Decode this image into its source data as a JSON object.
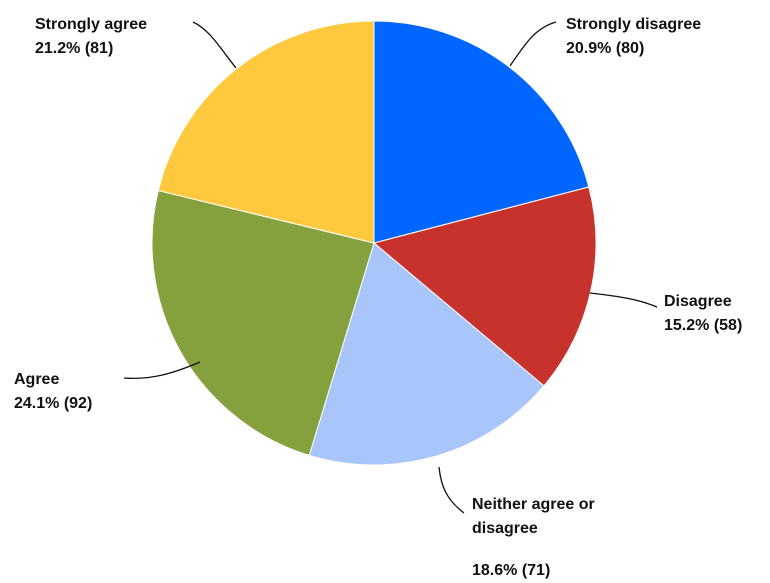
{
  "chart_data": {
    "type": "pie",
    "title": "",
    "slices": [
      {
        "label": "Strongly disagree",
        "label_lines": [
          "Strongly disagree"
        ],
        "percent": "20.9%",
        "count": "(80)",
        "value": 80,
        "color": "#0066ff"
      },
      {
        "label": "Disagree",
        "label_lines": [
          "Disagree"
        ],
        "percent": "15.2%",
        "count": "(58)",
        "value": 58,
        "color": "#c7332c"
      },
      {
        "label": "Neither agree or disagree",
        "label_lines": [
          "Neither agree or",
          "disagree"
        ],
        "percent": "18.6%",
        "count": "(71)",
        "value": 71,
        "color": "#a9c6fb"
      },
      {
        "label": "Agree",
        "label_lines": [
          "Agree"
        ],
        "percent": "24.1%",
        "count": "(92)",
        "value": 92,
        "color": "#85a13d"
      },
      {
        "label": "Strongly agree",
        "label_lines": [
          "Strongly agree"
        ],
        "percent": "21.2%",
        "count": "(81)",
        "value": 81,
        "color": "#fec83f"
      }
    ],
    "legend": "none"
  }
}
